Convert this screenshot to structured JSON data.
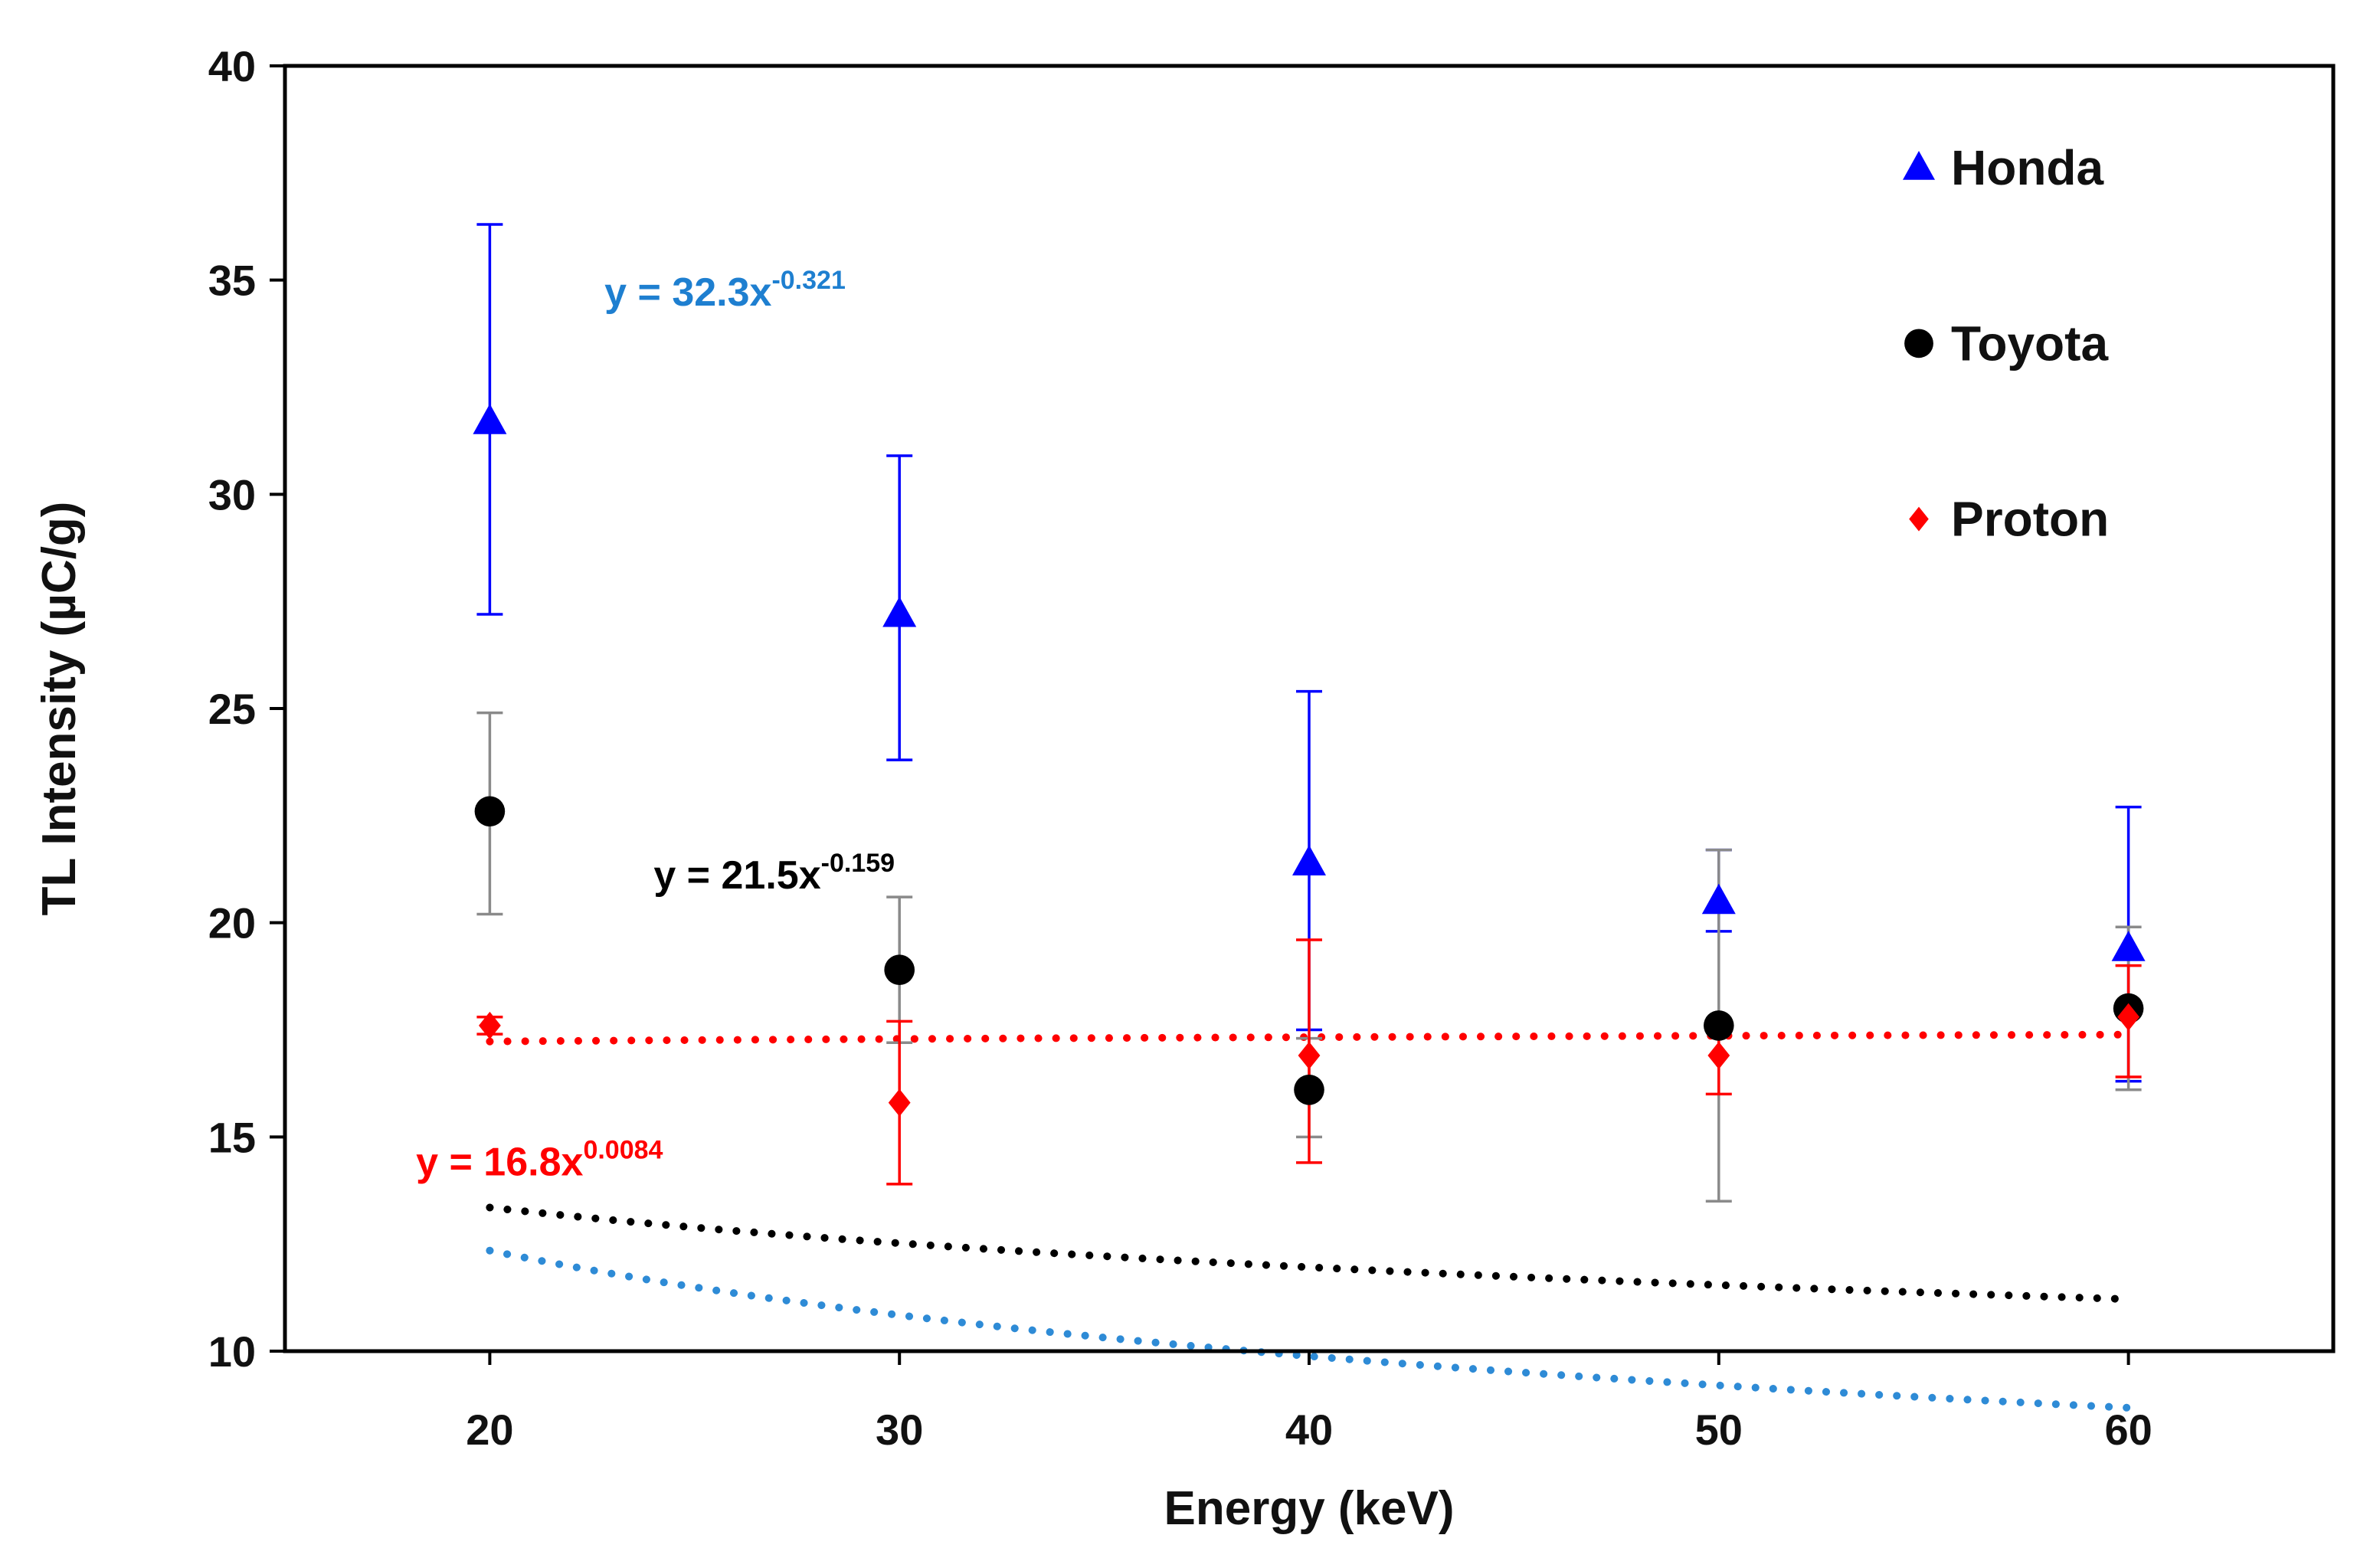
{
  "chart_data": {
    "type": "scatter",
    "title": "",
    "xlabel": "Energy (keV)",
    "ylabel": "TL Intensity (µC/g)",
    "xlim": [
      15,
      65
    ],
    "ylim": [
      10,
      40
    ],
    "x_ticks": [
      20,
      30,
      40,
      50,
      60
    ],
    "y_ticks": [
      10,
      15,
      20,
      25,
      30,
      35,
      40
    ],
    "x_tick_labels": [
      "20",
      "30",
      "40",
      "50",
      "60"
    ],
    "y_tick_labels": [
      "10",
      "15",
      "20",
      "25",
      "30",
      "35",
      "40"
    ],
    "grid": false,
    "legend_position": "top-right",
    "series": [
      {
        "name": "Honda",
        "marker": "triangle",
        "color": "#0000ff",
        "x": [
          20,
          30,
          40,
          50,
          60
        ],
        "y": [
          31.7,
          27.2,
          21.4,
          20.5,
          19.4
        ],
        "err_low": [
          27.2,
          23.8,
          17.5,
          19.8,
          16.3
        ],
        "err_high": [
          36.3,
          30.9,
          25.4,
          21.7,
          22.7
        ],
        "trendline": {
          "a": 32.3,
          "b": -0.321,
          "color": "#2e8bd6"
        },
        "equation": {
          "prefix": "y = 32.3x",
          "exponent": "-0.321",
          "color": "#1e7fd0"
        }
      },
      {
        "name": "Toyota",
        "marker": "circle",
        "color": "#000000",
        "x": [
          20,
          30,
          40,
          50,
          60
        ],
        "y": [
          22.6,
          18.9,
          16.1,
          17.6,
          18.0
        ],
        "err_low": [
          20.2,
          17.2,
          15.0,
          13.5,
          16.1
        ],
        "err_high": [
          24.9,
          20.6,
          17.3,
          21.7,
          19.9
        ],
        "trendline": {
          "a": 21.5,
          "b": -0.159,
          "color": "#000000"
        },
        "equation": {
          "prefix": "y = 21.5x",
          "exponent": "-0.159",
          "color": "#000000"
        }
      },
      {
        "name": "Proton",
        "marker": "diamond",
        "color": "#ff0000",
        "x": [
          20,
          30,
          40,
          50,
          60
        ],
        "y": [
          17.6,
          15.8,
          16.9,
          16.9,
          17.8
        ],
        "err_low": [
          17.4,
          13.9,
          14.4,
          16.0,
          16.4
        ],
        "err_high": [
          17.8,
          17.7,
          19.6,
          17.7,
          19.0
        ],
        "trendline": {
          "a": 16.8,
          "b": 0.0084,
          "color": "#ff0000"
        },
        "equation": {
          "prefix": "y = 16.8x",
          "exponent": "0.0084",
          "color": "#ff0000"
        }
      }
    ]
  }
}
